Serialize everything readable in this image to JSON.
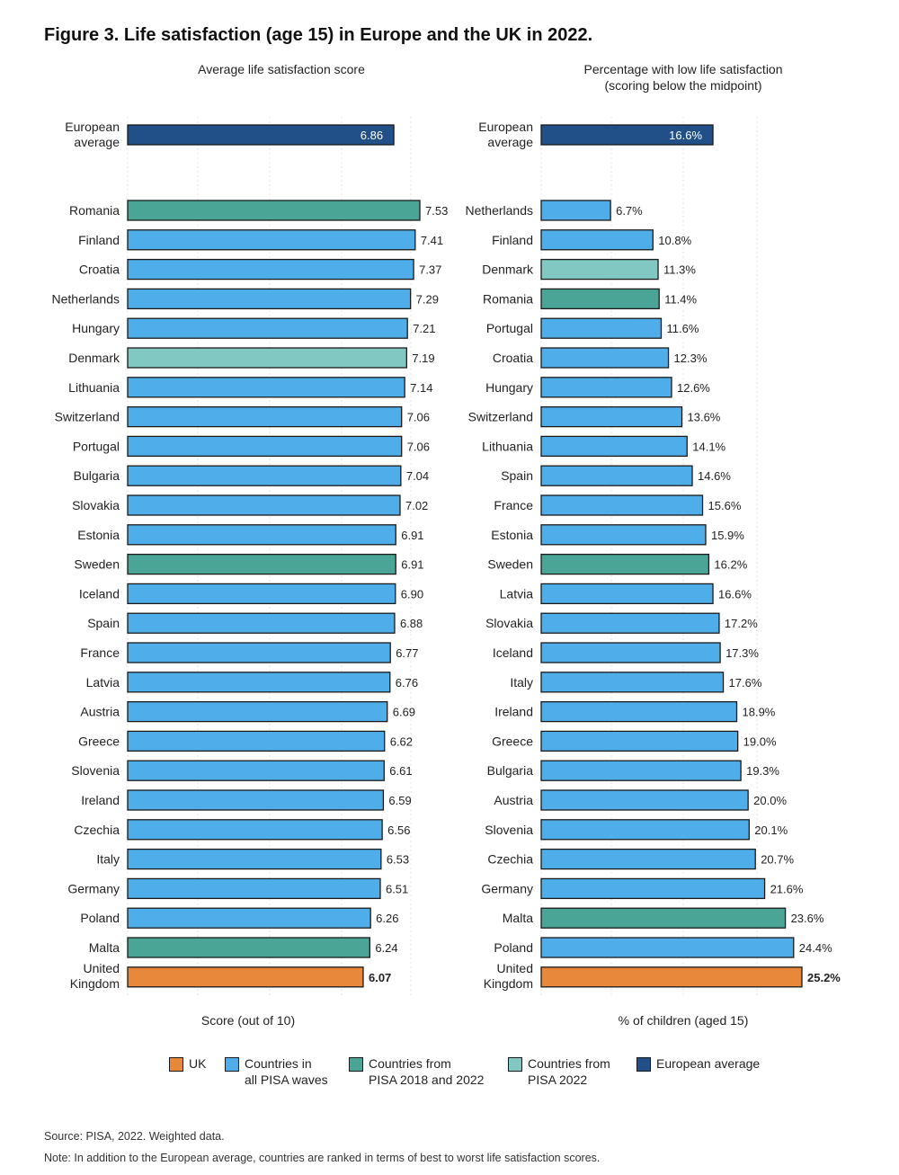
{
  "title": "Figure 3. Life satisfaction (age 15) in Europe and the UK in 2022.",
  "colors": {
    "uk": "#E8883A",
    "all_waves": "#4FAEEA",
    "pisa_2018_2022": "#4BA597",
    "pisa_2022": "#82C8C2",
    "european_average": "#205087"
  },
  "legend": [
    {
      "key": "uk",
      "label": "UK"
    },
    {
      "key": "all_waves",
      "label": "Countries in\nall PISA waves"
    },
    {
      "key": "pisa_2018_2022",
      "label": "Countries from\nPISA 2018 and 2022"
    },
    {
      "key": "pisa_2022",
      "label": "Countries from\nPISA 2022"
    },
    {
      "key": "european_average",
      "label": "European average"
    }
  ],
  "source": "Source: PISA, 2022. Weighted data.",
  "note": "Note: In addition to the European average, countries are ranked in terms of best to worst life satisfaction scores.",
  "chart_data": [
    {
      "type": "bar",
      "orientation": "horizontal",
      "title": "Average life satisfaction score",
      "xlabel": "Score (out of 10)",
      "grid": true,
      "average": {
        "label": "European average",
        "value": 6.86,
        "display": "6.86"
      },
      "categories": [
        "Romania",
        "Finland",
        "Croatia",
        "Netherlands",
        "Hungary",
        "Denmark",
        "Lithuania",
        "Switzerland",
        "Portugal",
        "Bulgaria",
        "Slovakia",
        "Estonia",
        "Sweden",
        "Iceland",
        "Spain",
        "France",
        "Latvia",
        "Austria",
        "Greece",
        "Slovenia",
        "Ireland",
        "Czechia",
        "Italy",
        "Germany",
        "Poland",
        "Malta",
        "United Kingdom"
      ],
      "values": [
        7.53,
        7.41,
        7.37,
        7.29,
        7.21,
        7.19,
        7.14,
        7.06,
        7.06,
        7.04,
        7.02,
        6.91,
        6.91,
        6.9,
        6.88,
        6.77,
        6.76,
        6.69,
        6.62,
        6.61,
        6.59,
        6.56,
        6.53,
        6.51,
        6.26,
        6.24,
        6.07
      ],
      "labels": [
        "7.53",
        "7.41",
        "7.37",
        "7.29",
        "7.21",
        "7.19",
        "7.14",
        "7.06",
        "7.06",
        "7.04",
        "7.02",
        "6.91",
        "6.91",
        "6.90",
        "6.88",
        "6.77",
        "6.76",
        "6.69",
        "6.62",
        "6.61",
        "6.59",
        "6.56",
        "6.53",
        "6.51",
        "6.26",
        "6.24",
        "6.07"
      ],
      "groups": [
        "pisa_2018_2022",
        "all_waves",
        "all_waves",
        "all_waves",
        "all_waves",
        "pisa_2022",
        "all_waves",
        "all_waves",
        "all_waves",
        "all_waves",
        "all_waves",
        "all_waves",
        "pisa_2018_2022",
        "all_waves",
        "all_waves",
        "all_waves",
        "all_waves",
        "all_waves",
        "all_waves",
        "all_waves",
        "all_waves",
        "all_waves",
        "all_waves",
        "all_waves",
        "all_waves",
        "pisa_2018_2022",
        "uk"
      ]
    },
    {
      "type": "bar",
      "orientation": "horizontal",
      "title": "Percentage with low life satisfaction\n(scoring below the midpoint)",
      "xlabel": "% of children (aged 15)",
      "grid": true,
      "average": {
        "label": "European average",
        "value": 16.6,
        "display": "16.6%"
      },
      "categories": [
        "Netherlands",
        "Finland",
        "Denmark",
        "Romania",
        "Portugal",
        "Croatia",
        "Hungary",
        "Switzerland",
        "Lithuania",
        "Spain",
        "France",
        "Estonia",
        "Sweden",
        "Latvia",
        "Slovakia",
        "Iceland",
        "Italy",
        "Ireland",
        "Greece",
        "Bulgaria",
        "Austria",
        "Slovenia",
        "Czechia",
        "Germany",
        "Malta",
        "Poland",
        "United Kingdom"
      ],
      "values": [
        6.7,
        10.8,
        11.3,
        11.4,
        11.6,
        12.3,
        12.6,
        13.6,
        14.1,
        14.6,
        15.6,
        15.9,
        16.2,
        16.6,
        17.2,
        17.3,
        17.6,
        18.9,
        19.0,
        19.3,
        20.0,
        20.1,
        20.7,
        21.6,
        23.6,
        24.4,
        25.2
      ],
      "labels": [
        "6.7%",
        "10.8%",
        "11.3%",
        "11.4%",
        "11.6%",
        "12.3%",
        "12.6%",
        "13.6%",
        "14.1%",
        "14.6%",
        "15.6%",
        "15.9%",
        "16.2%",
        "16.6%",
        "17.2%",
        "17.3%",
        "17.6%",
        "18.9%",
        "19.0%",
        "19.3%",
        "20.0%",
        "20.1%",
        "20.7%",
        "21.6%",
        "23.6%",
        "24.4%",
        "25.2%"
      ],
      "groups": [
        "all_waves",
        "all_waves",
        "pisa_2022",
        "pisa_2018_2022",
        "all_waves",
        "all_waves",
        "all_waves",
        "all_waves",
        "all_waves",
        "all_waves",
        "all_waves",
        "all_waves",
        "pisa_2018_2022",
        "all_waves",
        "all_waves",
        "all_waves",
        "all_waves",
        "all_waves",
        "all_waves",
        "all_waves",
        "all_waves",
        "all_waves",
        "all_waves",
        "all_waves",
        "pisa_2018_2022",
        "all_waves",
        "uk"
      ]
    }
  ]
}
